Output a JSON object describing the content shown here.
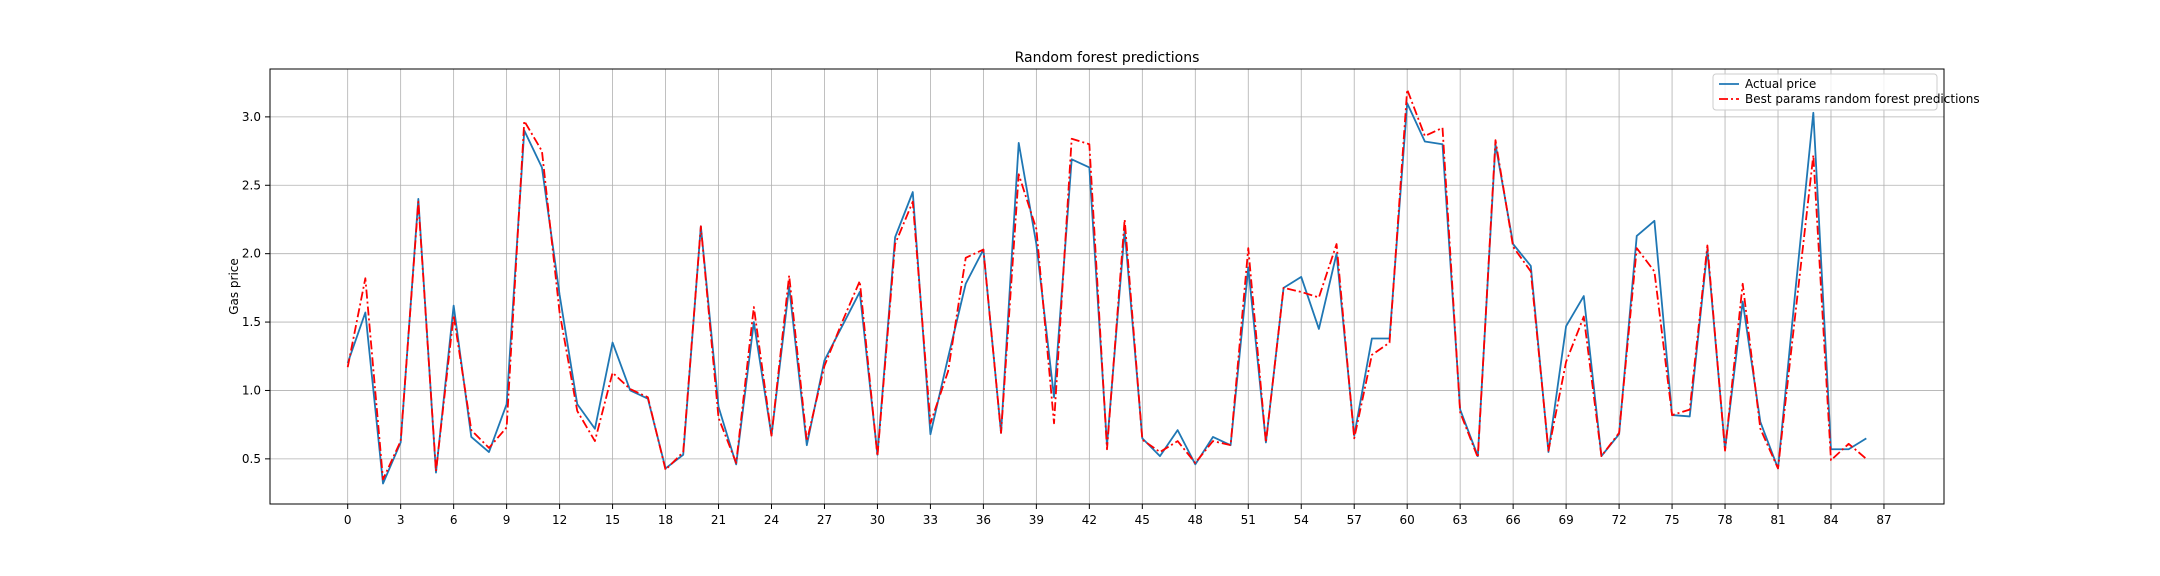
{
  "chart_data": {
    "type": "line",
    "title": "Random forest predictions",
    "xlabel": "",
    "ylabel": "Gas price",
    "xlim": [
      -4.4,
      90.4
    ],
    "ylim": [
      0.17,
      3.35
    ],
    "xticks": [
      0,
      3,
      6,
      9,
      12,
      15,
      18,
      21,
      24,
      27,
      30,
      33,
      36,
      39,
      42,
      45,
      48,
      51,
      54,
      57,
      60,
      63,
      66,
      69,
      72,
      75,
      78,
      81,
      84,
      87
    ],
    "xtick_labels": [
      "0",
      "3",
      "6",
      "9",
      "12",
      "15",
      "18",
      "21",
      "24",
      "27",
      "30",
      "33",
      "36",
      "39",
      "42",
      "45",
      "48",
      "51",
      "54",
      "57",
      "60",
      "63",
      "66",
      "69",
      "72",
      "75",
      "78",
      "81",
      "84",
      "87"
    ],
    "yticks": [
      0.5,
      1.0,
      1.5,
      2.0,
      2.5,
      3.0
    ],
    "ytick_labels": [
      "0.5",
      "1.0",
      "1.5",
      "2.0",
      "2.5",
      "3.0"
    ],
    "grid": true,
    "legend_position": "top-right",
    "series": [
      {
        "name": "Actual price",
        "color": "#1f77b4",
        "style": "solid",
        "values": [
          1.2,
          1.57,
          0.32,
          0.62,
          2.4,
          0.4,
          1.62,
          0.66,
          0.55,
          0.9,
          2.9,
          2.63,
          1.7,
          0.9,
          0.72,
          1.35,
          1.0,
          0.94,
          0.43,
          0.53,
          2.2,
          0.88,
          0.46,
          1.5,
          0.67,
          1.76,
          0.6,
          1.22,
          1.47,
          1.72,
          0.53,
          2.12,
          2.45,
          0.68,
          1.24,
          1.78,
          2.03,
          0.69,
          2.81,
          2.07,
          0.95,
          2.69,
          2.63,
          0.6,
          2.17,
          0.65,
          0.52,
          0.71,
          0.46,
          0.66,
          0.6,
          1.9,
          0.62,
          1.75,
          1.83,
          1.45,
          2.0,
          0.67,
          1.38,
          1.38,
          3.1,
          2.82,
          2.8,
          0.86,
          0.52,
          2.8,
          2.07,
          1.91,
          0.55,
          1.47,
          1.69,
          0.52,
          0.68,
          2.13,
          2.24,
          0.82,
          0.81,
          2.03,
          0.57,
          1.65,
          0.77,
          0.43,
          1.75,
          3.03,
          0.57,
          0.57,
          0.65
        ]
      },
      {
        "name": "Best params random forest predictions",
        "color": "#ff0000",
        "style": "dashdot",
        "values": [
          1.17,
          1.82,
          0.35,
          0.63,
          2.38,
          0.41,
          1.55,
          0.71,
          0.58,
          0.73,
          2.97,
          2.75,
          1.57,
          0.85,
          0.63,
          1.13,
          1.01,
          0.95,
          0.42,
          0.55,
          2.2,
          0.8,
          0.47,
          1.61,
          0.67,
          1.84,
          0.63,
          1.18,
          1.5,
          1.8,
          0.52,
          2.07,
          2.38,
          0.76,
          1.14,
          1.97,
          2.03,
          0.69,
          2.58,
          2.18,
          0.76,
          2.84,
          2.8,
          0.57,
          2.25,
          0.64,
          0.55,
          0.63,
          0.47,
          0.63,
          0.6,
          2.04,
          0.62,
          1.75,
          1.72,
          1.68,
          2.07,
          0.65,
          1.26,
          1.35,
          3.2,
          2.86,
          2.92,
          0.84,
          0.51,
          2.83,
          2.05,
          1.87,
          0.56,
          1.21,
          1.54,
          0.52,
          0.69,
          2.04,
          1.87,
          0.82,
          0.86,
          2.06,
          0.56,
          1.78,
          0.72,
          0.43,
          1.58,
          2.72,
          0.49,
          0.61,
          0.5
        ]
      }
    ]
  }
}
